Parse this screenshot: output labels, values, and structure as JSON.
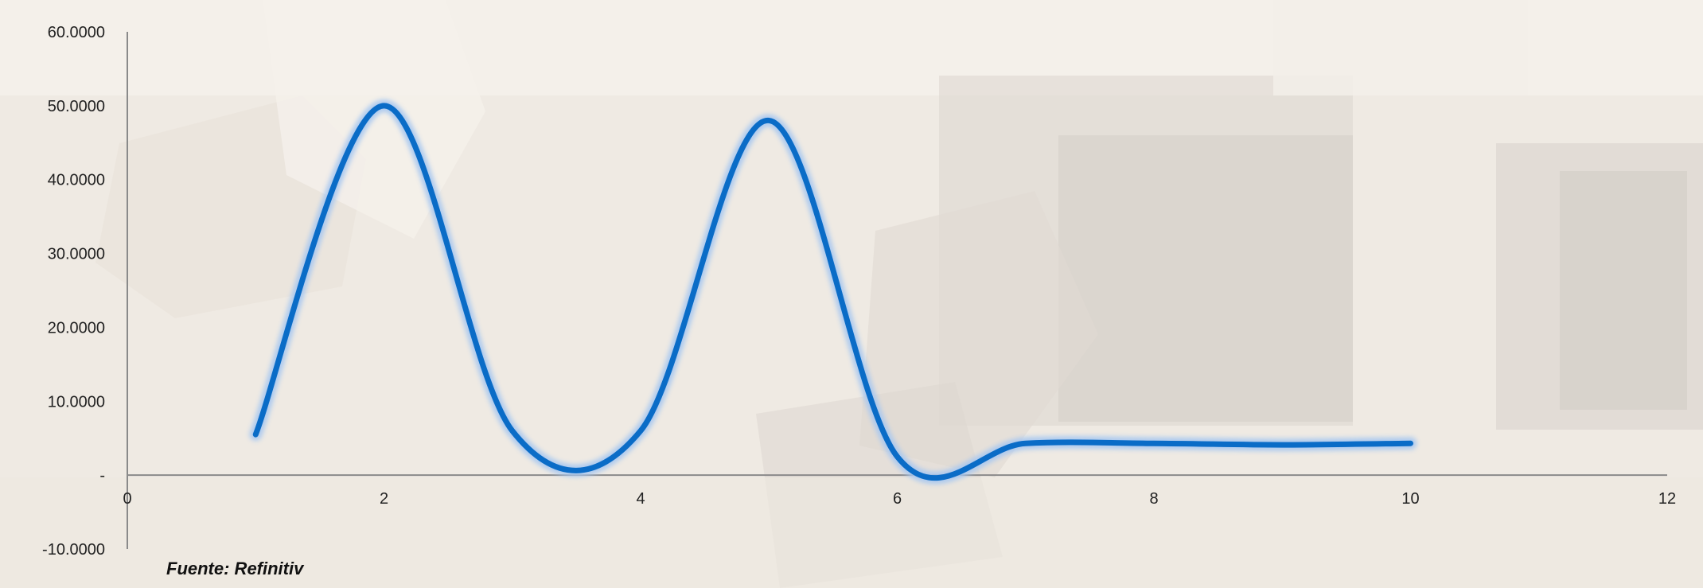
{
  "source": "Fuente: Refinitiv",
  "colors": {
    "line": "#0a6cc7",
    "glow": "#a9c8f0",
    "axis": "#8a8a8a"
  },
  "chart_data": {
    "type": "line",
    "title": "",
    "xlabel": "",
    "ylabel": "",
    "xlim": [
      0,
      12
    ],
    "ylim": [
      -10,
      60
    ],
    "x_ticks": [
      0,
      2,
      4,
      6,
      8,
      10,
      12
    ],
    "x_tick_labels": [
      "0",
      "2",
      "4",
      "6",
      "8",
      "10",
      "12"
    ],
    "y_ticks": [
      60,
      50,
      40,
      30,
      20,
      10,
      0,
      -10
    ],
    "y_tick_labels": [
      "60.0000",
      "50.0000",
      "40.0000",
      "30.0000",
      "20.0000",
      "10.0000",
      "-",
      "-10.0000"
    ],
    "grid": false,
    "legend": "none",
    "smooth": true,
    "series": [
      {
        "name": "",
        "x": [
          1,
          2,
          3,
          4,
          5,
          6,
          7,
          8,
          9,
          10
        ],
        "y": [
          5.5,
          50,
          6,
          6,
          48,
          2.5,
          4.3,
          4.3,
          4.1,
          4.3
        ]
      }
    ]
  }
}
